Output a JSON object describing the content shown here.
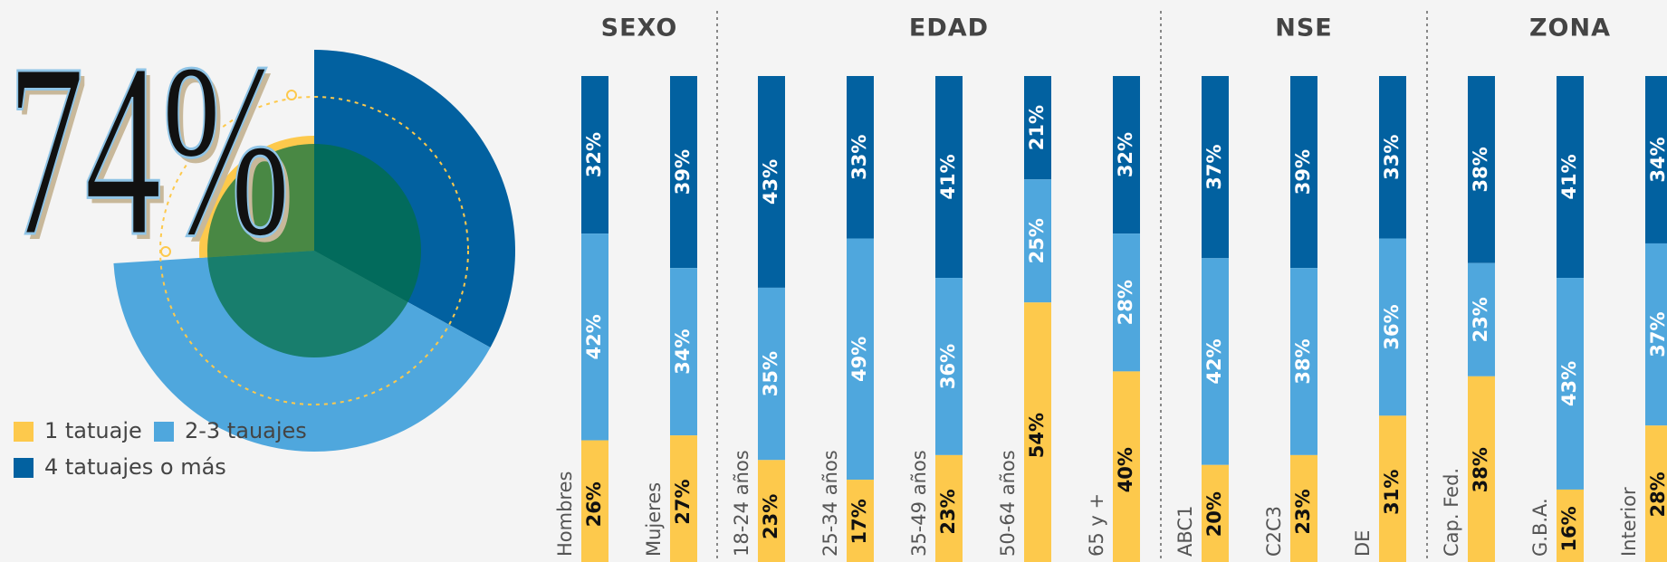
{
  "chart_data": [
    {
      "type": "pie",
      "annotation": "74%",
      "categories": [
        "1 tatuaje",
        "2-3 tauajes",
        "4 tatuajes o más"
      ],
      "values": [
        26,
        41,
        33
      ],
      "colors": [
        "#fdc94c",
        "#4fa7dd",
        "#0261a0"
      ]
    },
    {
      "type": "stacked_bar",
      "groups": [
        {
          "name": "SEXO",
          "categories": [
            "Hombres",
            "Mujeres"
          ]
        },
        {
          "name": "EDAD",
          "categories": [
            "18-24 años",
            "25-34 años",
            "35-49 años",
            "50-64 años",
            "65 y +"
          ]
        },
        {
          "name": "NSE",
          "categories": [
            "ABC1",
            "C2C3",
            "DE"
          ]
        },
        {
          "name": "ZONA",
          "categories": [
            "Cap. Fed.",
            "G.B.A.",
            "Interior"
          ]
        }
      ],
      "series": [
        {
          "name": "4 tatuajes o más",
          "color": "#0261a0",
          "values": [
            32,
            39,
            43,
            33,
            41,
            21,
            32,
            37,
            39,
            33,
            38,
            41,
            34
          ],
          "value_labels": [
            "32%",
            "39%",
            "43%",
            "33%",
            "41%",
            "21%",
            "32%",
            "37%",
            "39%",
            "33%",
            "38%",
            "41%",
            "34%"
          ]
        },
        {
          "name": "2-3 tauajes",
          "color": "#4fa7dd",
          "values": [
            42,
            34,
            35,
            49,
            36,
            25,
            28,
            42,
            38,
            36,
            23,
            43,
            37
          ],
          "value_labels": [
            "42%",
            "34%",
            "35%",
            "49%",
            "36%",
            "25%",
            "28%",
            "42%",
            "38%",
            "36%",
            "23%",
            "43%",
            "37%"
          ]
        },
        {
          "name": "1 tatuaje",
          "color": "#fdc94c",
          "values": [
            26,
            27,
            23,
            17,
            23,
            54,
            40,
            20,
            23,
            31,
            38,
            16,
            28
          ],
          "value_labels": [
            "26%",
            "27%",
            "23%",
            "17%",
            "23%",
            "54%",
            "40%",
            "20%",
            "23%",
            "31%",
            "38%",
            "16%",
            "28%"
          ]
        }
      ]
    }
  ]
}
